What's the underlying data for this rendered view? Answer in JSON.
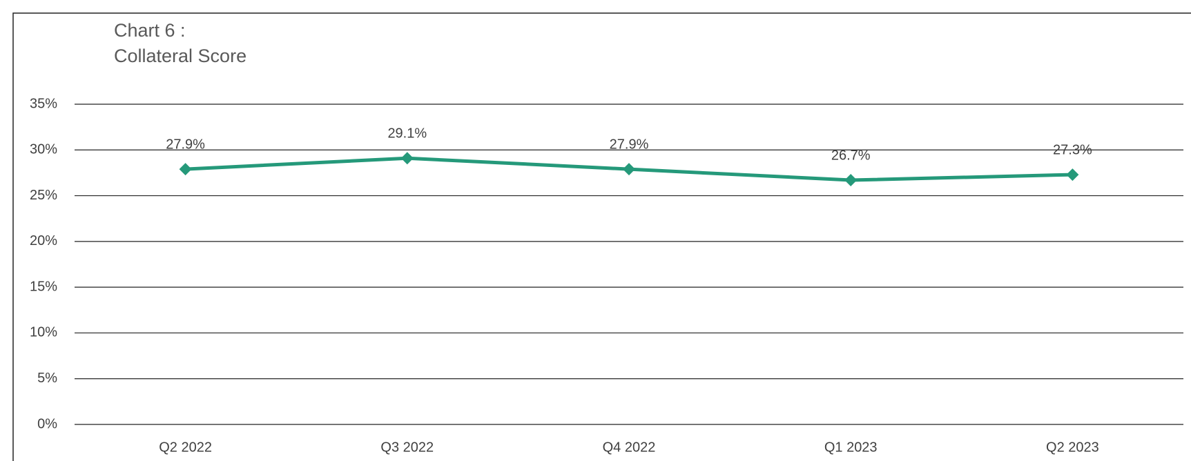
{
  "chart_data": {
    "type": "line",
    "title": "Chart 6 :",
    "subtitle": "Collateral Score",
    "categories": [
      "Q2 2022",
      "Q3 2022",
      "Q4 2022",
      "Q1 2023",
      "Q2 2023"
    ],
    "series": [
      {
        "name": "Collateral Score",
        "color": "#25997a",
        "values": [
          27.9,
          29.1,
          27.9,
          26.7,
          27.3
        ],
        "value_labels": [
          "27.9%",
          "29.1%",
          "27.9%",
          "26.7%",
          "27.3%"
        ]
      }
    ],
    "ylim": [
      0,
      35
    ],
    "yticks": [
      {
        "value": 0,
        "label": "0%"
      },
      {
        "value": 5,
        "label": "5%"
      },
      {
        "value": 10,
        "label": "10%"
      },
      {
        "value": 15,
        "label": "15%"
      },
      {
        "value": 20,
        "label": "20%"
      },
      {
        "value": 25,
        "label": "25%"
      },
      {
        "value": 30,
        "label": "30%"
      },
      {
        "value": 35,
        "label": "35%"
      }
    ],
    "grid": true,
    "legend": false
  }
}
